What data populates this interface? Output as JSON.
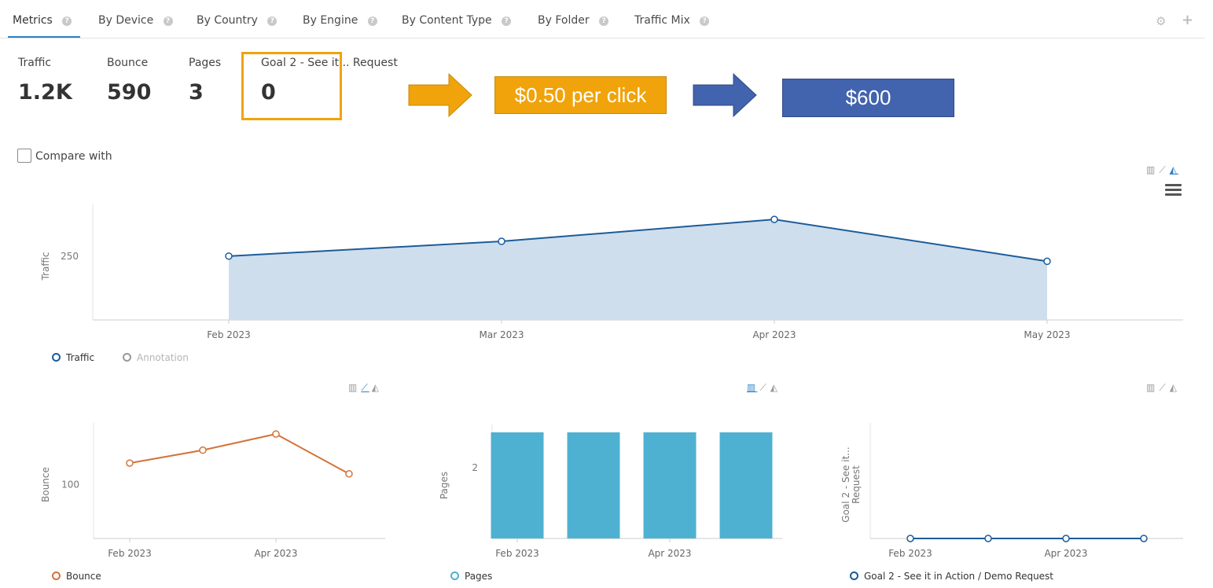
{
  "tabs": [
    {
      "label": "Metrics"
    },
    {
      "label": "By Device"
    },
    {
      "label": "By Country"
    },
    {
      "label": "By Engine"
    },
    {
      "label": "By Content Type"
    },
    {
      "label": "By Folder"
    },
    {
      "label": "Traffic Mix"
    }
  ],
  "metrics": [
    {
      "label": "Traffic",
      "value": "1.2K"
    },
    {
      "label": "Bounce",
      "value": "590"
    },
    {
      "label": "Pages",
      "value": "3"
    },
    {
      "label": "Goal 2 - See it... Request",
      "value": "0"
    }
  ],
  "callouts": {
    "price": "$0.50 per click",
    "total": "$600",
    "colors": {
      "orange": "#f0a30a",
      "blue": "#4263ad"
    }
  },
  "compare_label": "Compare with",
  "icons": {
    "help": "?",
    "settings": "⚙",
    "add": "+",
    "bar": "▥",
    "line": "⟋",
    "area": "◭"
  },
  "chart_data": [
    {
      "type": "area",
      "categories": [
        "Feb 2023",
        "Mar 2023",
        "Apr 2023",
        "May 2023"
      ],
      "series": [
        {
          "name": "Traffic",
          "values": [
            250,
            287,
            342,
            237
          ],
          "color": "#1c5c9a"
        }
      ],
      "ylabel": "Traffic",
      "yticks": [
        250
      ],
      "ylim": [
        90,
        360
      ],
      "legend": [
        {
          "name": "Traffic",
          "color": "#1c5c9a"
        },
        {
          "name": "Annotation",
          "color": "#9a9a9a"
        }
      ]
    },
    {
      "type": "line",
      "categories": [
        "Feb 2023",
        "Mar 2023",
        "Apr 2023",
        "May 2023"
      ],
      "tick_labels": [
        "Feb 2023",
        "Apr 2023"
      ],
      "series": [
        {
          "name": "Bounce",
          "values": [
            120,
            132,
            147,
            110
          ],
          "color": "#d4733a"
        }
      ],
      "ylabel": "Bounce",
      "yticks": [
        100
      ],
      "ylim": [
        50,
        150
      ],
      "legend": [
        {
          "name": "Bounce",
          "color": "#d4733a"
        }
      ]
    },
    {
      "type": "bar",
      "categories": [
        "Feb 2023",
        "Mar 2023",
        "Apr 2023",
        "May 2023"
      ],
      "tick_labels": [
        "Feb 2023",
        "Apr 2023"
      ],
      "series": [
        {
          "name": "Pages",
          "values": [
            3,
            3,
            3,
            3
          ],
          "color": "#4fb1d2"
        }
      ],
      "ylabel": "Pages",
      "yticks": [
        2
      ],
      "ylim": [
        0,
        3
      ],
      "legend": [
        {
          "name": "Pages",
          "color": "#4fb1d2"
        }
      ]
    },
    {
      "type": "line",
      "categories": [
        "Feb 2023",
        "Mar 2023",
        "Apr 2023",
        "May 2023"
      ],
      "tick_labels": [
        "Feb 2023",
        "Apr 2023"
      ],
      "series": [
        {
          "name": "Goal 2 - See it in Action / Demo Request",
          "values": [
            0,
            0,
            0,
            0
          ],
          "color": "#1c5c9a"
        }
      ],
      "ylabel": [
        "Goal 2 - See it...",
        "Request"
      ],
      "ylim": [
        0,
        1
      ],
      "legend": [
        {
          "name": "Goal 2 - See it in Action / Demo Request",
          "color": "#1c5c9a"
        }
      ]
    }
  ]
}
